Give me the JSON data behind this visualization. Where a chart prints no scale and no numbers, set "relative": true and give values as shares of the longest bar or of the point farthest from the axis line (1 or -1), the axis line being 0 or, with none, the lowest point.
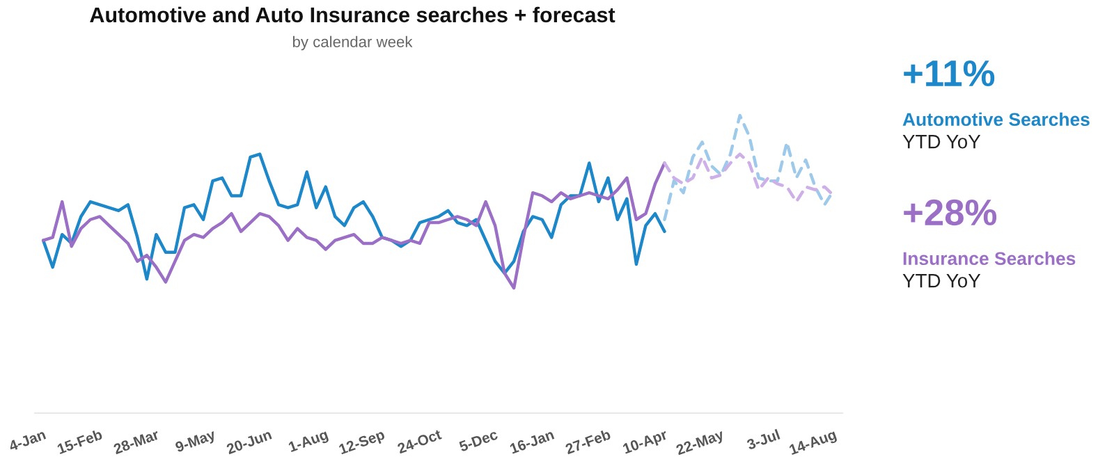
{
  "chart_data": {
    "type": "line",
    "title": "Automotive and Auto Insurance searches + forecast",
    "subtitle": "by calendar week",
    "relative": true,
    "grid": false,
    "marker": "none",
    "categories": [
      "4-Jan",
      null,
      null,
      null,
      null,
      null,
      "15-Feb",
      null,
      null,
      null,
      null,
      null,
      "28-Mar",
      null,
      null,
      null,
      null,
      null,
      "9-May",
      null,
      null,
      null,
      null,
      null,
      "20-Jun",
      null,
      null,
      null,
      null,
      null,
      "1-Aug",
      null,
      null,
      null,
      null,
      null,
      "12-Sep",
      null,
      null,
      null,
      null,
      null,
      "24-Oct",
      null,
      null,
      null,
      null,
      null,
      "5-Dec",
      null,
      null,
      null,
      null,
      null,
      "16-Jan",
      null,
      null,
      null,
      null,
      null,
      "27-Feb",
      null,
      null,
      null,
      null,
      null,
      "10-Apr",
      null,
      null,
      null,
      null,
      null,
      "22-May",
      null,
      null,
      null,
      null,
      null,
      "3-Jul",
      null,
      null,
      null,
      null,
      null,
      "14-Aug"
    ],
    "series": [
      {
        "name": "Automotive Searches",
        "color": "#1c87c9",
        "line_style": "solid",
        "values": [
          0.58,
          0.49,
          0.6,
          0.57,
          0.66,
          0.71,
          0.7,
          0.69,
          0.68,
          0.7,
          0.59,
          0.45,
          0.6,
          0.54,
          0.54,
          0.69,
          0.7,
          0.65,
          0.78,
          0.79,
          0.73,
          0.73,
          0.86,
          0.87,
          0.78,
          0.7,
          0.69,
          0.7,
          0.81,
          0.69,
          0.76,
          0.66,
          0.63,
          0.69,
          0.71,
          0.66,
          0.59,
          0.58,
          0.56,
          0.58,
          0.64,
          0.65,
          0.66,
          0.68,
          0.64,
          0.63,
          0.65,
          0.58,
          0.51,
          0.47,
          0.51,
          0.61,
          0.66,
          0.65,
          0.59,
          0.7,
          0.73,
          0.73,
          0.84,
          0.71,
          0.79,
          0.65,
          0.72,
          0.5,
          0.63,
          0.67,
          0.61,
          null,
          null,
          null,
          null,
          null,
          null,
          null,
          null,
          null,
          null,
          null,
          null,
          null,
          null,
          null,
          null,
          null,
          null
        ]
      },
      {
        "color": "#9dc9eb",
        "line_style": "dashed",
        "values": [
          null,
          null,
          null,
          null,
          null,
          null,
          null,
          null,
          null,
          null,
          null,
          null,
          null,
          null,
          null,
          null,
          null,
          null,
          null,
          null,
          null,
          null,
          null,
          null,
          null,
          null,
          null,
          null,
          null,
          null,
          null,
          null,
          null,
          null,
          null,
          null,
          null,
          null,
          null,
          null,
          null,
          null,
          null,
          null,
          null,
          null,
          null,
          null,
          null,
          null,
          null,
          null,
          null,
          null,
          null,
          null,
          null,
          null,
          null,
          null,
          null,
          null,
          null,
          null,
          null,
          null,
          0.65,
          0.78,
          0.74,
          0.86,
          0.91,
          0.83,
          0.8,
          0.87,
          1.0,
          0.93,
          0.79,
          0.78,
          0.78,
          0.91,
          0.79,
          0.85,
          0.76,
          0.7,
          0.75
        ]
      },
      {
        "name": "Insurance Searches",
        "color": "#9b6fc6",
        "line_style": "solid",
        "values": [
          0.58,
          0.59,
          0.71,
          0.56,
          0.62,
          0.65,
          0.66,
          0.63,
          0.6,
          0.57,
          0.51,
          0.53,
          0.49,
          0.44,
          0.51,
          0.58,
          0.6,
          0.59,
          0.62,
          0.64,
          0.67,
          0.61,
          0.64,
          0.67,
          0.66,
          0.63,
          0.58,
          0.62,
          0.59,
          0.58,
          0.55,
          0.58,
          0.59,
          0.6,
          0.57,
          0.57,
          0.59,
          0.58,
          0.57,
          0.58,
          0.57,
          0.64,
          0.64,
          0.65,
          0.66,
          0.65,
          0.63,
          0.71,
          0.63,
          0.47,
          0.42,
          0.59,
          0.74,
          0.73,
          0.71,
          0.74,
          0.72,
          0.73,
          0.74,
          0.73,
          0.72,
          0.75,
          0.79,
          0.65,
          0.67,
          0.77,
          0.84,
          null,
          null,
          null,
          null,
          null,
          null,
          null,
          null,
          null,
          null,
          null,
          null,
          null,
          null,
          null,
          null,
          null,
          null
        ]
      },
      {
        "color": "#cdb0e8",
        "line_style": "dashed",
        "values": [
          null,
          null,
          null,
          null,
          null,
          null,
          null,
          null,
          null,
          null,
          null,
          null,
          null,
          null,
          null,
          null,
          null,
          null,
          null,
          null,
          null,
          null,
          null,
          null,
          null,
          null,
          null,
          null,
          null,
          null,
          null,
          null,
          null,
          null,
          null,
          null,
          null,
          null,
          null,
          null,
          null,
          null,
          null,
          null,
          null,
          null,
          null,
          null,
          null,
          null,
          null,
          null,
          null,
          null,
          null,
          null,
          null,
          null,
          null,
          null,
          null,
          null,
          null,
          null,
          null,
          null,
          0.84,
          0.79,
          0.77,
          0.79,
          0.86,
          0.79,
          0.8,
          0.84,
          0.87,
          0.84,
          0.75,
          0.79,
          0.77,
          0.76,
          0.71,
          0.76,
          0.75,
          0.76,
          0.73
        ]
      }
    ],
    "annotations": [
      "+11%",
      "YTD YoY",
      "+28%",
      "YTD YoY"
    ]
  }
}
